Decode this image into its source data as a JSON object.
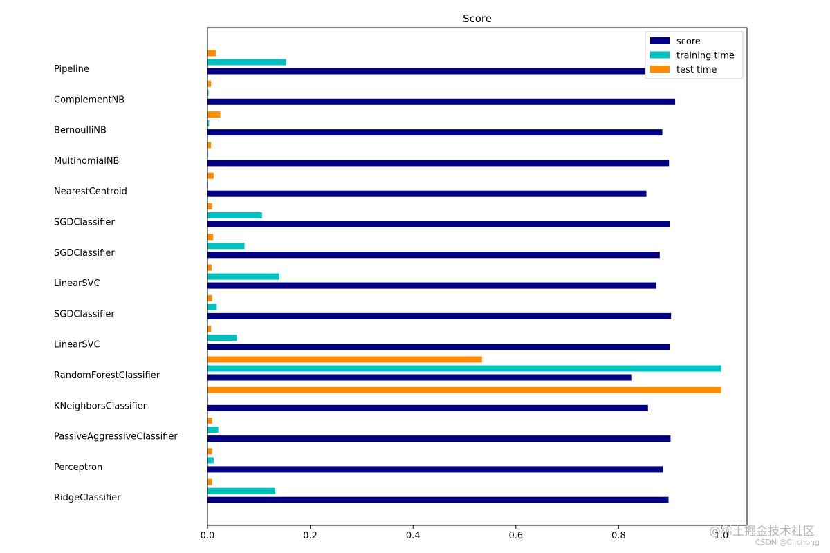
{
  "chart_data": {
    "type": "bar",
    "orientation": "horizontal",
    "title": "Score",
    "xlabel": "",
    "ylabel": "",
    "xlim": [
      0,
      1.05
    ],
    "x_ticks": [
      "0.0",
      "0.2",
      "0.4",
      "0.6",
      "0.8",
      "1.0"
    ],
    "x_tick_values": [
      0,
      0.2,
      0.4,
      0.6,
      0.8,
      1.0
    ],
    "categories": [
      "Pipeline",
      "ComplementNB",
      "BernoulliNB",
      "MultinomialNB",
      "NearestCentroid",
      "SGDClassifier",
      "SGDClassifier",
      "LinearSVC",
      "SGDClassifier",
      "LinearSVC",
      "RandomForestClassifier",
      "KNeighborsClassifier",
      "PassiveAggressiveClassifier",
      "Perceptron",
      "RidgeClassifier"
    ],
    "series": [
      {
        "name": "score",
        "color": "#000080",
        "values": [
          0.88,
          0.91,
          0.885,
          0.898,
          0.854,
          0.899,
          0.88,
          0.873,
          0.902,
          0.899,
          0.826,
          0.857,
          0.901,
          0.886,
          0.897
        ]
      },
      {
        "name": "training time",
        "color": "#00bfbf",
        "values": [
          0.153,
          0.002,
          0.003,
          0.001,
          0.001,
          0.106,
          0.072,
          0.14,
          0.018,
          0.057,
          1.0,
          0.0,
          0.021,
          0.012,
          0.132
        ]
      },
      {
        "name": "test time",
        "color": "#ff8c00",
        "values": [
          0.016,
          0.007,
          0.025,
          0.007,
          0.012,
          0.009,
          0.011,
          0.008,
          0.009,
          0.007,
          0.534,
          1.0,
          0.009,
          0.009,
          0.009
        ]
      }
    ],
    "legend_position": "top-right",
    "grid": false
  },
  "watermark": {
    "text": "@稀土掘金技术社区",
    "subtext": "CSDN @Clichong"
  }
}
